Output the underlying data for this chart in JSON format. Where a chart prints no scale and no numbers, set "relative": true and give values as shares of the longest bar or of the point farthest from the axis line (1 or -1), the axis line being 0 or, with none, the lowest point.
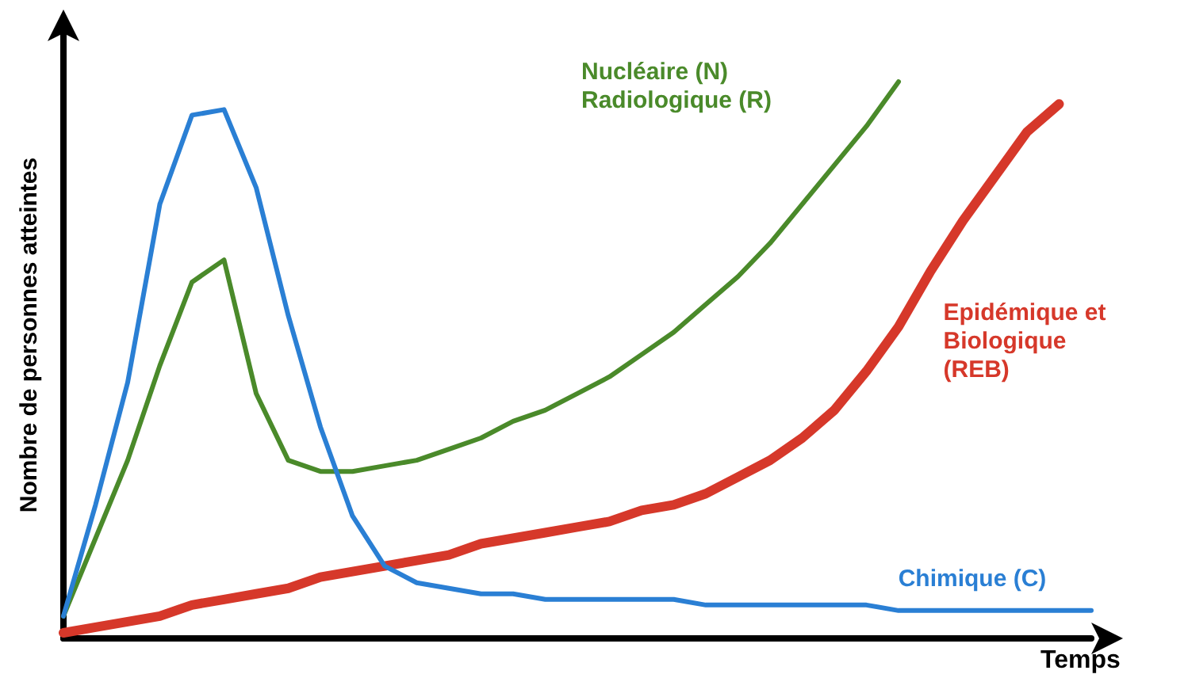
{
  "chart_data": {
    "type": "line",
    "relative": true,
    "xlabel": "Temps",
    "ylabel": "Nombre de personnes atteintes",
    "legend": false,
    "grid": false,
    "marker": "none",
    "line_style": "solid",
    "categories": [
      null,
      null,
      null,
      null,
      null,
      null,
      null,
      null,
      null,
      null,
      null,
      null,
      null,
      null,
      null,
      null,
      null,
      null,
      null,
      null,
      null,
      null,
      null,
      null,
      null,
      null,
      null,
      null,
      null,
      null,
      null,
      null,
      null
    ],
    "series": [
      {
        "name": "Nucléaire (N)\nRadiologique (R)",
        "color": "#4a8a2a",
        "values": [
          0.04,
          0.18,
          0.32,
          0.49,
          0.64,
          0.68,
          0.44,
          0.32,
          0.3,
          0.3,
          0.31,
          0.32,
          0.34,
          0.36,
          0.39,
          0.41,
          0.44,
          0.47,
          0.51,
          0.55,
          0.6,
          0.65,
          0.71,
          0.78,
          0.85,
          0.92,
          1.0,
          null,
          null,
          null,
          null,
          null,
          null
        ]
      },
      {
        "name": "Epidémique et\nBiologique\n(REB)",
        "color": "#d6382a",
        "values": [
          0.01,
          0.02,
          0.03,
          0.04,
          0.06,
          0.07,
          0.08,
          0.09,
          0.11,
          0.12,
          0.13,
          0.14,
          0.15,
          0.17,
          0.18,
          0.19,
          0.2,
          0.21,
          0.23,
          0.24,
          0.26,
          0.29,
          0.32,
          0.36,
          0.41,
          0.48,
          0.56,
          0.66,
          0.75,
          0.83,
          0.91,
          0.96,
          null
        ]
      },
      {
        "name": "Chimique (C)",
        "color": "#2a7fd4",
        "values": [
          0.04,
          0.24,
          0.46,
          0.78,
          0.94,
          0.95,
          0.81,
          0.58,
          0.38,
          0.22,
          0.13,
          0.1,
          0.09,
          0.08,
          0.08,
          0.07,
          0.07,
          0.07,
          0.07,
          0.07,
          0.06,
          0.06,
          0.06,
          0.06,
          0.06,
          0.06,
          0.05,
          0.05,
          0.05,
          0.05,
          0.05,
          0.05,
          0.05
        ]
      }
    ]
  }
}
